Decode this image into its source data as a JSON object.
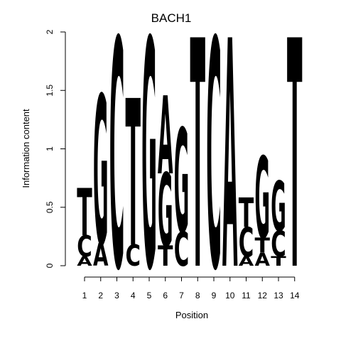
{
  "chart_data": {
    "type": "sequence-logo",
    "title": "BACH1",
    "xlabel": "Position",
    "ylabel": "Information content",
    "ylim": [
      0,
      2
    ],
    "yticks": [
      0,
      0.5,
      1,
      1.5,
      2
    ],
    "ytick_labels": [
      "0",
      "0.5",
      "1",
      "1.5",
      "2"
    ],
    "colors": {
      "A": "#00cc00",
      "C": "#0000ff",
      "G": "#ffa500",
      "T": "#ff0000"
    },
    "positions": [
      {
        "pos": "1",
        "stack": [
          {
            "base": "A",
            "h": 0.08
          },
          {
            "base": "C",
            "h": 0.18
          },
          {
            "base": "T",
            "h": 0.4
          }
        ]
      },
      {
        "pos": "2",
        "stack": [
          {
            "base": "A",
            "h": 0.19
          },
          {
            "base": "G",
            "h": 1.26
          }
        ]
      },
      {
        "pos": "3",
        "stack": [
          {
            "base": "C",
            "h": 1.93
          }
        ]
      },
      {
        "pos": "4",
        "stack": [
          {
            "base": "C",
            "h": 0.18
          },
          {
            "base": "T",
            "h": 1.24
          }
        ]
      },
      {
        "pos": "5",
        "stack": [
          {
            "base": "G",
            "h": 1.93
          }
        ]
      },
      {
        "pos": "6",
        "stack": [
          {
            "base": "T",
            "h": 0.17
          },
          {
            "base": "G",
            "h": 0.62
          },
          {
            "base": "A",
            "h": 0.66
          }
        ]
      },
      {
        "pos": "7",
        "stack": [
          {
            "base": "C",
            "h": 0.29
          },
          {
            "base": "G",
            "h": 0.88
          }
        ]
      },
      {
        "pos": "8",
        "stack": [
          {
            "base": "T",
            "h": 1.93
          }
        ]
      },
      {
        "pos": "9",
        "stack": [
          {
            "base": "C",
            "h": 1.93
          }
        ]
      },
      {
        "pos": "10",
        "stack": [
          {
            "base": "A",
            "h": 1.93
          }
        ]
      },
      {
        "pos": "11",
        "stack": [
          {
            "base": "A",
            "h": 0.08
          },
          {
            "base": "C",
            "h": 0.25
          },
          {
            "base": "T",
            "h": 0.25
          }
        ]
      },
      {
        "pos": "12",
        "stack": [
          {
            "base": "A",
            "h": 0.11
          },
          {
            "base": "T",
            "h": 0.13
          },
          {
            "base": "G",
            "h": 0.69
          }
        ]
      },
      {
        "pos": "13",
        "stack": [
          {
            "base": "T",
            "h": 0.08
          },
          {
            "base": "C",
            "h": 0.22
          },
          {
            "base": "G",
            "h": 0.42
          }
        ]
      },
      {
        "pos": "14",
        "stack": [
          {
            "base": "T",
            "h": 1.93
          }
        ]
      }
    ]
  }
}
